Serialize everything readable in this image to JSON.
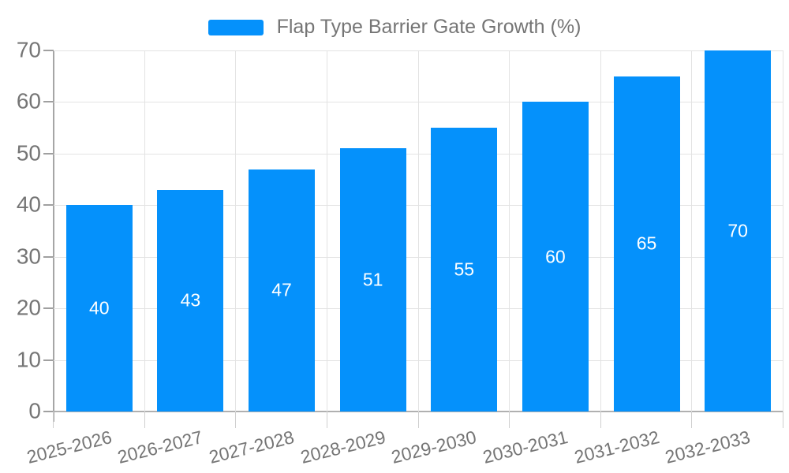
{
  "chart_data": {
    "type": "bar",
    "title": "Flap Type Barrier Gate Growth (%)",
    "categories": [
      "2025-2026",
      "2026-2027",
      "2027-2028",
      "2028-2029",
      "2029-2030",
      "2030-2031",
      "2031-2032",
      "2032-2033"
    ],
    "values": [
      40,
      43,
      47,
      51,
      55,
      60,
      65,
      70
    ],
    "xlabel": "",
    "ylabel": "",
    "ylim": [
      0,
      70
    ],
    "yticks": [
      0,
      10,
      20,
      30,
      40,
      50,
      60,
      70
    ],
    "grid": "horizontal and vertical light gray gridlines",
    "legend_position": "top-center",
    "value_labels": "white, centered inside bars",
    "colors": {
      "bar": "#0591fb",
      "value_label_text": "#ffffff",
      "axis_text": "#757575",
      "legend_text": "#757575",
      "gridline": "#e3e3e3",
      "axis_line": "#aaaaaa",
      "background": "#ffffff"
    }
  }
}
